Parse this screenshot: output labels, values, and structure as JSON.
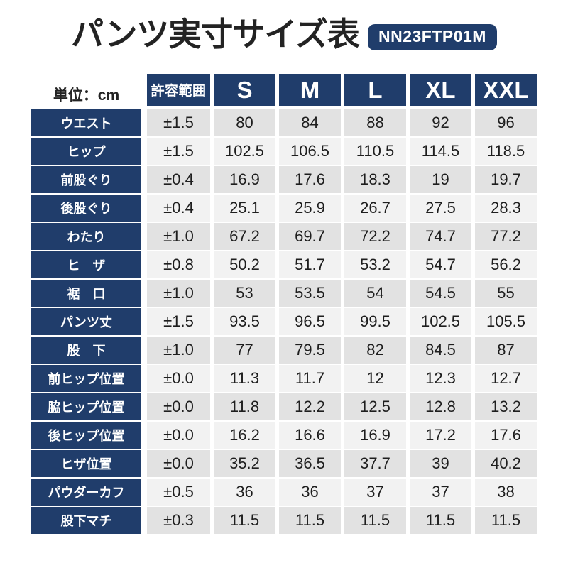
{
  "header": {
    "title": "パンツ実寸サイズ表",
    "product_code": "NN23FTP01M",
    "unit_label": "単位：cm"
  },
  "colors": {
    "navy": "#203d6b",
    "row_dark": "#e2e2e2",
    "row_light": "#f2f2f2",
    "text": "#1e1e1e"
  },
  "chart_data": {
    "type": "table",
    "title": "パンツ実寸サイズ表",
    "product_code": "NN23FTP01M",
    "unit": "cm",
    "columns": [
      "許容範囲",
      "S",
      "M",
      "L",
      "XL",
      "XXL"
    ],
    "rows": [
      {
        "label": "ウエスト",
        "cells": [
          "±1.5",
          "80",
          "84",
          "88",
          "92",
          "96"
        ]
      },
      {
        "label": "ヒップ",
        "cells": [
          "±1.5",
          "102.5",
          "106.5",
          "110.5",
          "114.5",
          "118.5"
        ]
      },
      {
        "label": "前股ぐり",
        "cells": [
          "±0.4",
          "16.9",
          "17.6",
          "18.3",
          "19",
          "19.7"
        ]
      },
      {
        "label": "後股ぐり",
        "cells": [
          "±0.4",
          "25.1",
          "25.9",
          "26.7",
          "27.5",
          "28.3"
        ]
      },
      {
        "label": "わたり",
        "cells": [
          "±1.0",
          "67.2",
          "69.7",
          "72.2",
          "74.7",
          "77.2"
        ]
      },
      {
        "label": "ヒ　ザ",
        "cells": [
          "±0.8",
          "50.2",
          "51.7",
          "53.2",
          "54.7",
          "56.2"
        ]
      },
      {
        "label": "裾　口",
        "cells": [
          "±1.0",
          "53",
          "53.5",
          "54",
          "54.5",
          "55"
        ]
      },
      {
        "label": "パンツ丈",
        "cells": [
          "±1.5",
          "93.5",
          "96.5",
          "99.5",
          "102.5",
          "105.5"
        ]
      },
      {
        "label": "股　下",
        "cells": [
          "±1.0",
          "77",
          "79.5",
          "82",
          "84.5",
          "87"
        ]
      },
      {
        "label": "前ヒップ位置",
        "cells": [
          "±0.0",
          "11.3",
          "11.7",
          "12",
          "12.3",
          "12.7"
        ]
      },
      {
        "label": "脇ヒップ位置",
        "cells": [
          "±0.0",
          "11.8",
          "12.2",
          "12.5",
          "12.8",
          "13.2"
        ]
      },
      {
        "label": "後ヒップ位置",
        "cells": [
          "±0.0",
          "16.2",
          "16.6",
          "16.9",
          "17.2",
          "17.6"
        ]
      },
      {
        "label": "ヒザ位置",
        "cells": [
          "±0.0",
          "35.2",
          "36.5",
          "37.7",
          "39",
          "40.2"
        ]
      },
      {
        "label": "パウダーカフ",
        "cells": [
          "±0.5",
          "36",
          "36",
          "37",
          "37",
          "38"
        ]
      },
      {
        "label": "股下マチ",
        "cells": [
          "±0.3",
          "11.5",
          "11.5",
          "11.5",
          "11.5",
          "11.5"
        ]
      }
    ]
  }
}
